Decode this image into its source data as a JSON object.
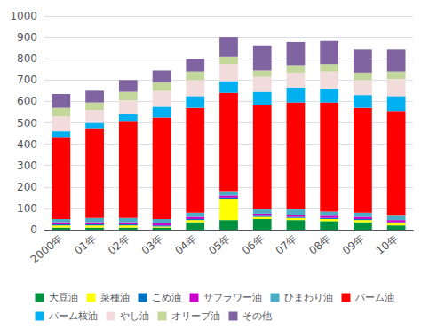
{
  "chart_data": {
    "type": "bar",
    "stacked": true,
    "categories": [
      "2000年",
      "01年",
      "02年",
      "03年",
      "04年",
      "05年",
      "06年",
      "07年",
      "08年",
      "09年",
      "10年"
    ],
    "series": [
      {
        "name": "大豆油",
        "color": "#00923F",
        "values": [
          10,
          10,
          10,
          10,
          35,
          45,
          50,
          45,
          40,
          35,
          20
        ]
      },
      {
        "name": "菜種油",
        "color": "#FFFF00",
        "values": [
          10,
          10,
          10,
          5,
          10,
          100,
          10,
          10,
          10,
          10,
          10
        ]
      },
      {
        "name": "こめ油",
        "color": "#0070C0",
        "values": [
          5,
          5,
          5,
          5,
          5,
          5,
          5,
          5,
          5,
          5,
          5
        ]
      },
      {
        "name": "サフラワー油",
        "color": "#CC00CC",
        "values": [
          10,
          10,
          10,
          10,
          10,
          10,
          10,
          10,
          10,
          10,
          10
        ]
      },
      {
        "name": "ひまわり油",
        "color": "#4BACC6",
        "values": [
          15,
          20,
          20,
          20,
          20,
          20,
          20,
          25,
          20,
          20,
          20
        ]
      },
      {
        "name": "パーム油",
        "color": "#FF0000",
        "values": [
          380,
          420,
          450,
          475,
          490,
          460,
          490,
          500,
          510,
          490,
          490
        ]
      },
      {
        "name": "パーム核油",
        "color": "#00B0F0",
        "values": [
          30,
          25,
          35,
          50,
          55,
          55,
          60,
          70,
          65,
          60,
          70
        ]
      },
      {
        "name": "やし油",
        "color": "#F2DCDB",
        "values": [
          70,
          60,
          65,
          75,
          75,
          80,
          70,
          70,
          80,
          70,
          80
        ]
      },
      {
        "name": "オリーブ油",
        "color": "#C4D79B",
        "values": [
          40,
          35,
          40,
          40,
          40,
          35,
          30,
          35,
          35,
          35,
          35
        ]
      },
      {
        "name": "その他",
        "color": "#8064A2",
        "values": [
          65,
          55,
          55,
          55,
          60,
          90,
          115,
          110,
          110,
          110,
          105
        ]
      }
    ],
    "ylim": [
      0,
      1000
    ],
    "yticks": [
      0,
      100,
      200,
      300,
      400,
      500,
      600,
      700,
      800,
      900,
      1000
    ],
    "grid": true,
    "legend": "bottom"
  }
}
